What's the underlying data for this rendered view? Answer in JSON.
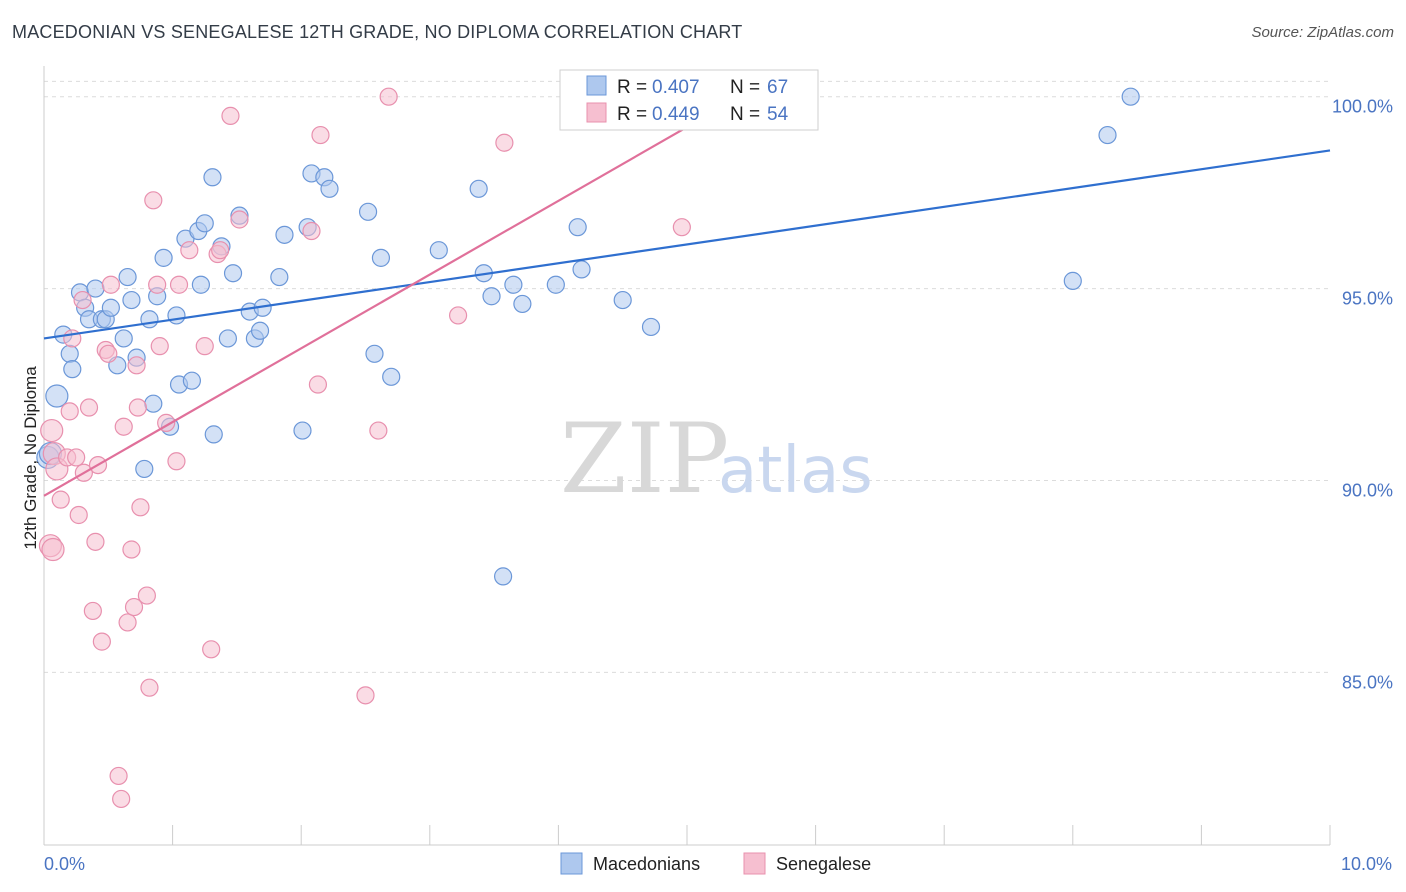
{
  "title": "MACEDONIAN VS SENEGALESE 12TH GRADE, NO DIPLOMA CORRELATION CHART",
  "source": "Source: ZipAtlas.com",
  "watermark": {
    "part1": "ZIP",
    "part2": "atlas"
  },
  "chart_data": {
    "type": "scatter",
    "xlabel": "",
    "ylabel": "12th Grade, No Diploma",
    "xlim": [
      0,
      10
    ],
    "ylim": [
      80.5,
      100.8
    ],
    "x_tick_labels": {
      "left": "0.0%",
      "right": "10.0%"
    },
    "y_ticks": [
      {
        "value": 85,
        "label": "85.0%"
      },
      {
        "value": 90,
        "label": "90.0%"
      },
      {
        "value": 95,
        "label": "95.0%"
      },
      {
        "value": 100,
        "label": "100.0%"
      }
    ],
    "legend": {
      "rows": [
        {
          "r_label": "R = ",
          "r_value": "0.407",
          "n_label": "N = ",
          "n_value": "67"
        },
        {
          "r_label": "R = ",
          "r_value": "0.449",
          "n_label": "N = ",
          "n_value": "54"
        }
      ]
    },
    "colors": {
      "mac_fill": "#aec8ee",
      "mac_stroke": "#6b97d8",
      "mac_line": "#2f6fcf",
      "sen_fill": "#f6bfd0",
      "sen_stroke": "#e890ae",
      "sen_line": "#e0709a",
      "grid": "#dcdcdc",
      "axis": "#cccccc"
    },
    "series": [
      {
        "name": "Macedonians",
        "trend": {
          "x0": 0.0,
          "y0": 93.7,
          "x1": 10.0,
          "y1": 98.6
        },
        "points": [
          [
            0.03,
            90.6
          ],
          [
            0.05,
            90.7
          ],
          [
            0.1,
            92.2
          ],
          [
            0.15,
            93.8
          ],
          [
            0.2,
            93.3
          ],
          [
            0.22,
            92.9
          ],
          [
            0.28,
            94.9
          ],
          [
            0.32,
            94.5
          ],
          [
            0.35,
            94.2
          ],
          [
            0.4,
            95.0
          ],
          [
            0.45,
            94.2
          ],
          [
            0.48,
            94.2
          ],
          [
            0.52,
            94.5
          ],
          [
            0.57,
            93.0
          ],
          [
            0.62,
            93.7
          ],
          [
            0.65,
            95.3
          ],
          [
            0.68,
            94.7
          ],
          [
            0.72,
            93.2
          ],
          [
            0.78,
            90.3
          ],
          [
            0.82,
            94.2
          ],
          [
            0.85,
            92.0
          ],
          [
            0.88,
            94.8
          ],
          [
            0.93,
            95.8
          ],
          [
            0.98,
            91.4
          ],
          [
            1.03,
            94.3
          ],
          [
            1.05,
            92.5
          ],
          [
            1.1,
            96.3
          ],
          [
            1.15,
            92.6
          ],
          [
            1.2,
            96.5
          ],
          [
            1.22,
            95.1
          ],
          [
            1.25,
            96.7
          ],
          [
            1.31,
            97.9
          ],
          [
            1.32,
            91.2
          ],
          [
            1.38,
            96.1
          ],
          [
            1.43,
            93.7
          ],
          [
            1.47,
            95.4
          ],
          [
            1.52,
            96.9
          ],
          [
            1.6,
            94.4
          ],
          [
            1.64,
            93.7
          ],
          [
            1.68,
            93.9
          ],
          [
            1.7,
            94.5
          ],
          [
            1.83,
            95.3
          ],
          [
            1.87,
            96.4
          ],
          [
            2.01,
            91.3
          ],
          [
            2.05,
            96.6
          ],
          [
            2.08,
            98.0
          ],
          [
            2.18,
            97.9
          ],
          [
            2.22,
            97.6
          ],
          [
            2.52,
            97.0
          ],
          [
            2.57,
            93.3
          ],
          [
            2.62,
            95.8
          ],
          [
            2.7,
            92.7
          ],
          [
            3.07,
            96.0
          ],
          [
            3.38,
            97.6
          ],
          [
            3.42,
            95.4
          ],
          [
            3.48,
            94.8
          ],
          [
            3.57,
            87.5
          ],
          [
            3.65,
            95.1
          ],
          [
            3.72,
            94.6
          ],
          [
            3.98,
            95.1
          ],
          [
            4.15,
            96.6
          ],
          [
            4.18,
            95.5
          ],
          [
            4.5,
            94.7
          ],
          [
            4.72,
            94.0
          ],
          [
            8.0,
            95.2
          ],
          [
            8.27,
            99.0
          ],
          [
            8.45,
            100.0
          ]
        ]
      },
      {
        "name": "Senegalese",
        "trend": {
          "x0": 0.0,
          "y0": 89.6,
          "x1": 5.1,
          "y1": 99.4
        },
        "points": [
          [
            0.05,
            88.3
          ],
          [
            0.06,
            91.3
          ],
          [
            0.08,
            90.7
          ],
          [
            0.1,
            90.3
          ],
          [
            0.13,
            89.5
          ],
          [
            0.18,
            90.6
          ],
          [
            0.2,
            91.8
          ],
          [
            0.22,
            93.7
          ],
          [
            0.25,
            90.6
          ],
          [
            0.27,
            89.1
          ],
          [
            0.3,
            94.7
          ],
          [
            0.31,
            90.2
          ],
          [
            0.35,
            91.9
          ],
          [
            0.38,
            86.6
          ],
          [
            0.4,
            88.4
          ],
          [
            0.42,
            90.4
          ],
          [
            0.45,
            85.8
          ],
          [
            0.48,
            93.4
          ],
          [
            0.5,
            93.3
          ],
          [
            0.52,
            95.1
          ],
          [
            0.58,
            82.3
          ],
          [
            0.6,
            81.7
          ],
          [
            0.62,
            91.4
          ],
          [
            0.65,
            86.3
          ],
          [
            0.68,
            88.2
          ],
          [
            0.7,
            86.7
          ],
          [
            0.72,
            93.0
          ],
          [
            0.73,
            91.9
          ],
          [
            0.75,
            89.3
          ],
          [
            0.8,
            87.0
          ],
          [
            0.82,
            84.6
          ],
          [
            0.85,
            97.3
          ],
          [
            0.88,
            95.1
          ],
          [
            0.9,
            93.5
          ],
          [
            0.95,
            91.5
          ],
          [
            1.03,
            90.5
          ],
          [
            1.05,
            95.1
          ],
          [
            1.13,
            96.0
          ],
          [
            1.25,
            93.5
          ],
          [
            1.3,
            85.6
          ],
          [
            1.35,
            95.9
          ],
          [
            1.37,
            96.0
          ],
          [
            1.45,
            99.5
          ],
          [
            1.52,
            96.8
          ],
          [
            2.08,
            96.5
          ],
          [
            2.13,
            92.5
          ],
          [
            2.15,
            99.0
          ],
          [
            2.5,
            84.4
          ],
          [
            2.6,
            91.3
          ],
          [
            2.68,
            100.0
          ],
          [
            3.22,
            94.3
          ],
          [
            3.58,
            98.8
          ],
          [
            4.96,
            96.6
          ],
          [
            0.07,
            88.2
          ]
        ]
      }
    ]
  }
}
